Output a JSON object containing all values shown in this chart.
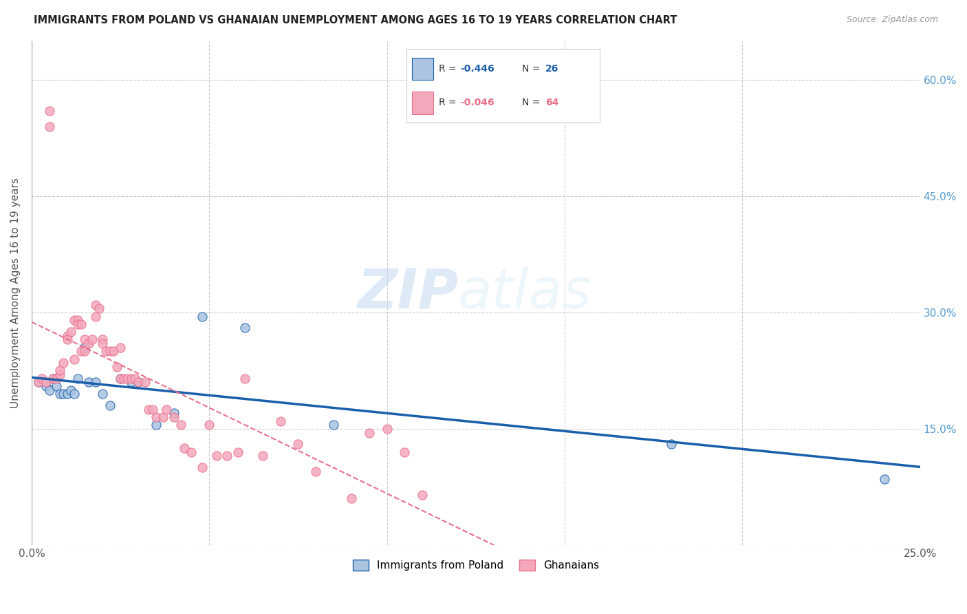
{
  "title": "IMMIGRANTS FROM POLAND VS GHANAIAN UNEMPLOYMENT AMONG AGES 16 TO 19 YEARS CORRELATION CHART",
  "source": "Source: ZipAtlas.com",
  "ylabel": "Unemployment Among Ages 16 to 19 years",
  "xlim": [
    0.0,
    0.25
  ],
  "ylim": [
    0.0,
    0.65
  ],
  "ytick_vals": [
    0.0,
    0.15,
    0.3,
    0.45,
    0.6
  ],
  "ytick_labels_left": [
    "",
    "",
    "",
    "",
    ""
  ],
  "ytick_labels_right": [
    "",
    "15.0%",
    "30.0%",
    "45.0%",
    "60.0%"
  ],
  "xtick_vals": [
    0.0,
    0.05,
    0.1,
    0.15,
    0.2,
    0.25
  ],
  "xtick_labels": [
    "0.0%",
    "",
    "",
    "",
    "",
    "25.0%"
  ],
  "background_color": "#ffffff",
  "watermark_zip": "ZIP",
  "watermark_atlas": "atlas",
  "color_poland": "#aac4e2",
  "color_ghana": "#f5a8bc",
  "color_line_poland": "#1a5faa",
  "color_line_ghana": "#e8708a",
  "color_right_axis": "#5599cc",
  "legend_r1": "-0.446",
  "legend_n1": "26",
  "legend_r2": "-0.046",
  "legend_n2": "64",
  "poland_x": [
    0.002,
    0.004,
    0.005,
    0.006,
    0.007,
    0.008,
    0.009,
    0.01,
    0.011,
    0.012,
    0.013,
    0.015,
    0.016,
    0.018,
    0.02,
    0.022,
    0.025,
    0.028,
    0.03,
    0.035,
    0.04,
    0.048,
    0.06,
    0.085,
    0.18,
    0.24
  ],
  "poland_y": [
    0.21,
    0.205,
    0.2,
    0.215,
    0.205,
    0.195,
    0.195,
    0.195,
    0.2,
    0.195,
    0.215,
    0.255,
    0.21,
    0.21,
    0.195,
    0.18,
    0.215,
    0.21,
    0.21,
    0.155,
    0.17,
    0.295,
    0.28,
    0.155,
    0.13,
    0.085
  ],
  "ghana_x": [
    0.002,
    0.003,
    0.004,
    0.005,
    0.005,
    0.006,
    0.007,
    0.008,
    0.008,
    0.009,
    0.01,
    0.01,
    0.011,
    0.012,
    0.012,
    0.013,
    0.013,
    0.014,
    0.014,
    0.015,
    0.015,
    0.016,
    0.017,
    0.018,
    0.018,
    0.019,
    0.02,
    0.02,
    0.021,
    0.022,
    0.023,
    0.024,
    0.025,
    0.025,
    0.026,
    0.027,
    0.028,
    0.029,
    0.03,
    0.032,
    0.033,
    0.034,
    0.035,
    0.037,
    0.038,
    0.04,
    0.042,
    0.043,
    0.045,
    0.048,
    0.05,
    0.052,
    0.055,
    0.058,
    0.06,
    0.065,
    0.07,
    0.075,
    0.08,
    0.09,
    0.095,
    0.1,
    0.105,
    0.11
  ],
  "ghana_y": [
    0.21,
    0.215,
    0.21,
    0.54,
    0.56,
    0.215,
    0.215,
    0.22,
    0.225,
    0.235,
    0.27,
    0.265,
    0.275,
    0.24,
    0.29,
    0.29,
    0.285,
    0.285,
    0.25,
    0.265,
    0.25,
    0.26,
    0.265,
    0.295,
    0.31,
    0.305,
    0.265,
    0.26,
    0.25,
    0.25,
    0.25,
    0.23,
    0.255,
    0.215,
    0.215,
    0.215,
    0.215,
    0.215,
    0.21,
    0.21,
    0.175,
    0.175,
    0.165,
    0.165,
    0.175,
    0.165,
    0.155,
    0.125,
    0.12,
    0.1,
    0.155,
    0.115,
    0.115,
    0.12,
    0.215,
    0.115,
    0.16,
    0.13,
    0.095,
    0.06,
    0.145,
    0.15,
    0.12,
    0.065
  ]
}
